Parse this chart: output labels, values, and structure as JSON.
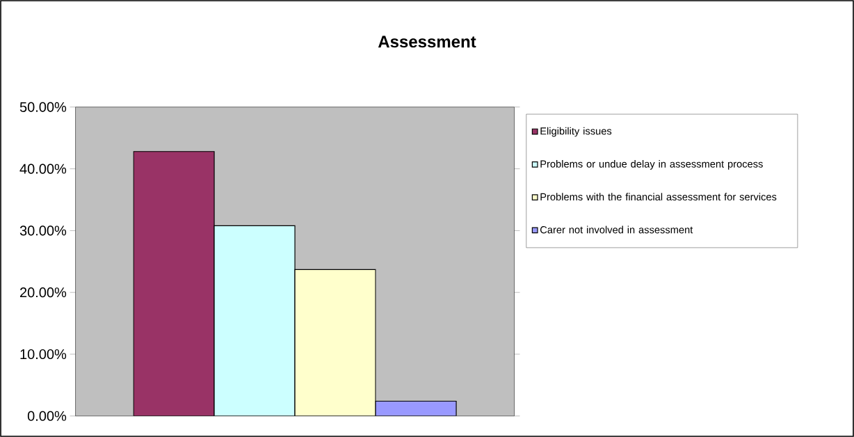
{
  "chart_data": {
    "type": "bar",
    "title": "Assessment",
    "categories": [
      null
    ],
    "series": [
      {
        "name": "Eligibility issues",
        "color": "#993366",
        "values": [
          42.8
        ]
      },
      {
        "name": "Problems or undue delay in assessment process",
        "color": "#ccffff",
        "values": [
          30.8
        ]
      },
      {
        "name": "Problems with the financial assessment for services",
        "color": "#ffffcc",
        "values": [
          23.7
        ]
      },
      {
        "name": "Carer not involved in assessment",
        "color": "#9999ff",
        "values": [
          2.4
        ]
      }
    ],
    "ylim": [
      0,
      50
    ],
    "yticks": [
      {
        "value": 0,
        "label": "0.00%"
      },
      {
        "value": 10,
        "label": "10.00%"
      },
      {
        "value": 20,
        "label": "20.00%"
      },
      {
        "value": 30,
        "label": "30.00%"
      },
      {
        "value": 40,
        "label": "40.00%"
      },
      {
        "value": 50,
        "label": "50.00%"
      }
    ],
    "grid": false,
    "legend": "right"
  }
}
